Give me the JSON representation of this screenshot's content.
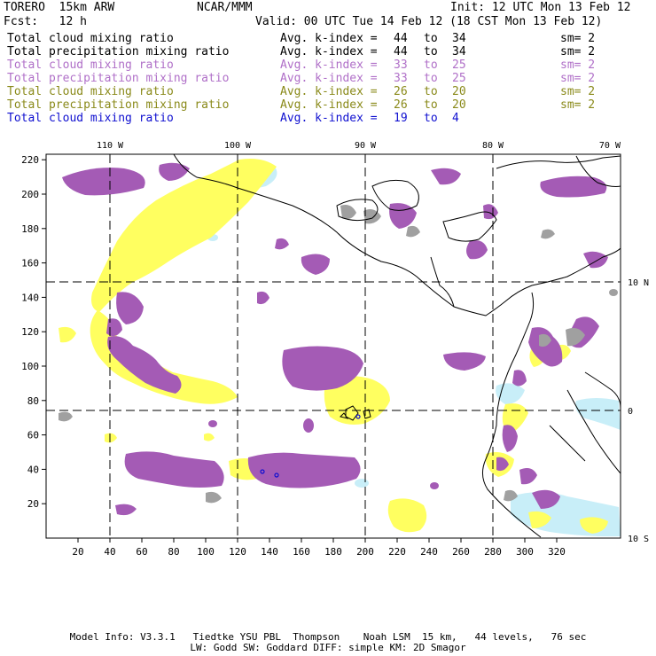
{
  "header": {
    "model": "TORERO  15km ARW",
    "org": "NCAR/MMM",
    "init": "Init: 12 UTC Mon 13 Feb 12",
    "fcst": "Fcst:   12 h",
    "valid": "Valid: 00 UTC Tue 14 Feb 12 (18 CST Mon 13 Feb 12)"
  },
  "legend": [
    {
      "field": "Total cloud mixing ratio",
      "kindex": "Avg. k-index =",
      "from": "44",
      "to_word": "to",
      "to": "34",
      "sm": "sm= 2",
      "color": "#000000"
    },
    {
      "field": "Total precipitation mixing ratio",
      "kindex": "Avg. k-index =",
      "from": "44",
      "to_word": "to",
      "to": "34",
      "sm": "sm= 2",
      "color": "#000000"
    },
    {
      "field": "Total cloud mixing ratio",
      "kindex": "Avg. k-index =",
      "from": "33",
      "to_word": "to",
      "to": "25",
      "sm": "sm= 2",
      "color": "#b070c8"
    },
    {
      "field": "Total precipitation mixing ratio",
      "kindex": "Avg. k-index =",
      "from": "33",
      "to_word": "to",
      "to": "25",
      "sm": "sm= 2",
      "color": "#b070c8"
    },
    {
      "field": "Total cloud mixing ratio",
      "kindex": "Avg. k-index =",
      "from": "26",
      "to_word": "to",
      "to": "20",
      "sm": "sm= 2",
      "color": "#8a8a1a"
    },
    {
      "field": "Total precipitation mixing ratio",
      "kindex": "Avg. k-index =",
      "from": "26",
      "to_word": "to",
      "to": "20",
      "sm": "sm= 2",
      "color": "#8a8a1a"
    },
    {
      "field": "Total cloud mixing ratio",
      "kindex": "Avg. k-index =",
      "from": "19",
      "to_word": "to",
      "to": "4",
      "sm": "",
      "color": "#1010d0"
    }
  ],
  "map": {
    "lon_labels": [
      "110 W",
      "100 W",
      "90 W",
      "80 W",
      "70 W"
    ],
    "lat_labels": [
      "10 N",
      "0",
      "10 S"
    ],
    "x_ticks": [
      "20",
      "40",
      "60",
      "80",
      "100",
      "120",
      "140",
      "160",
      "180",
      "200",
      "220",
      "240",
      "260",
      "280",
      "300",
      "320"
    ],
    "y_ticks": [
      "20",
      "40",
      "60",
      "80",
      "100",
      "120",
      "140",
      "160",
      "180",
      "200",
      "220"
    ],
    "colors": {
      "purple": "#a45bb5",
      "yellow": "#ffff60",
      "light_blue": "#c8eef8",
      "gray": "#a0a0a0"
    }
  },
  "footer": {
    "line1": "Model Info: V3.3.1   Tiedtke YSU PBL  Thompson    Noah LSM  15 km,   44 levels,   76 sec",
    "line2": "LW: Godd SW: Goddard DIFF: simple KM: 2D Smagor"
  }
}
